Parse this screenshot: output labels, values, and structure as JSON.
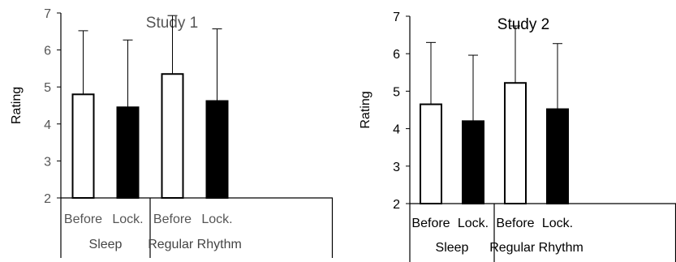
{
  "chart_data": [
    {
      "type": "bar",
      "title": "Study 1",
      "xlabel": "",
      "ylabel": "Rating",
      "ylim": [
        2,
        7
      ],
      "yticks": [
        2,
        3,
        4,
        5,
        6,
        7
      ],
      "bar_labels": [
        "Before",
        "Lock.",
        "Before",
        "Lock."
      ],
      "groups": [
        "Sleep",
        "Regular Rhythm"
      ],
      "values": [
        4.8,
        4.45,
        5.35,
        4.62
      ],
      "error_upper": [
        6.52,
        6.27,
        6.93,
        6.57
      ],
      "fills": [
        "#ffffff",
        "#000000",
        "#ffffff",
        "#000000"
      ],
      "grid": false
    },
    {
      "type": "bar",
      "title": "Study 2",
      "xlabel": "",
      "ylabel": "Rating",
      "ylim": [
        2,
        7
      ],
      "yticks": [
        2,
        3,
        4,
        5,
        6,
        7
      ],
      "bar_labels": [
        "Before",
        "Lock.",
        "Before",
        "Lock."
      ],
      "groups": [
        "Sleep",
        "Regular Rhythm"
      ],
      "values": [
        4.65,
        4.2,
        5.22,
        4.52
      ],
      "error_upper": [
        6.3,
        5.96,
        6.74,
        6.27
      ],
      "fills": [
        "#ffffff",
        "#000000",
        "#ffffff",
        "#000000"
      ],
      "grid": false
    }
  ]
}
